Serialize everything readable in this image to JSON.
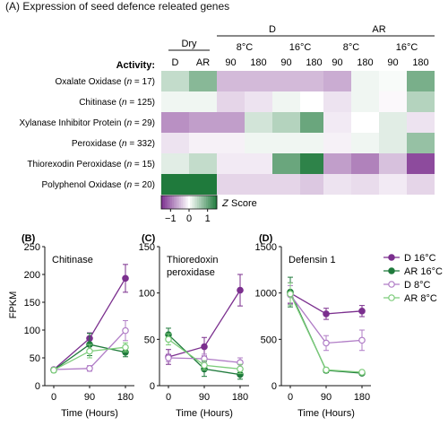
{
  "figure_title": "(A) Expression of seed defence releated genes",
  "chart_data": [
    {
      "type": "heatmap",
      "panel": "(A)",
      "row_header": "Activity:",
      "column_groups": [
        {
          "label": "Dry",
          "columns": [
            "D",
            "AR"
          ]
        },
        {
          "label": "D",
          "subgroups": [
            {
              "label": "8°C",
              "columns": [
                "90",
                "180"
              ]
            },
            {
              "label": "16°C",
              "columns": [
                "90",
                "180"
              ]
            }
          ]
        },
        {
          "label": "AR",
          "subgroups": [
            {
              "label": "8°C",
              "columns": [
                "90",
                "180"
              ]
            },
            {
              "label": "16°C",
              "columns": [
                "90",
                "180"
              ]
            }
          ]
        }
      ],
      "rows": [
        {
          "label": "Oxalate Oxidase",
          "n": "17",
          "values": [
            0.4,
            0.8,
            -0.5,
            -0.5,
            -0.5,
            -0.5,
            -0.6,
            0.1,
            0.05,
            0.9
          ]
        },
        {
          "label": "Chitinase",
          "n": "125",
          "values": [
            0.1,
            0.1,
            -0.3,
            -0.2,
            0.1,
            0.0,
            -0.2,
            0.1,
            -0.05,
            0.5
          ]
        },
        {
          "label": "Xylanase Inhibitor Protein",
          "n": "29",
          "values": [
            -0.8,
            -0.7,
            -0.7,
            0.3,
            0.5,
            1.0,
            -0.15,
            0.0,
            0.2,
            -0.2
          ]
        },
        {
          "label": "Peroxidase",
          "n": "332",
          "values": [
            -0.2,
            -0.1,
            -0.1,
            0.1,
            0.1,
            0.1,
            -0.1,
            0.1,
            0.2,
            0.7
          ]
        },
        {
          "label": "Thiorexodin Peroxidase",
          "n": "15",
          "values": [
            0.2,
            0.4,
            -0.15,
            -0.15,
            1.0,
            1.4,
            -0.7,
            -0.9,
            -0.45,
            -1.3
          ]
        },
        {
          "label": "Polyphenol Oxidase",
          "n": "20",
          "values": [
            1.5,
            1.5,
            -0.3,
            -0.3,
            -0.3,
            -0.4,
            -0.2,
            -0.25,
            -0.15,
            -0.3
          ]
        }
      ],
      "colorbar": {
        "label": "Z Score",
        "ticks": [
          "−1",
          "0",
          "1"
        ],
        "range": [
          -1.5,
          1.5
        ],
        "low_color": "#7b2f8e",
        "mid_color": "#ffffff",
        "high_color": "#1f7a3c"
      }
    },
    {
      "type": "line",
      "panel": "(B)",
      "title": "Chitinase",
      "xlabel": "Time (Hours)",
      "ylabel": "FPKM",
      "x": [
        0,
        90,
        180
      ],
      "xticks": [
        "0",
        "90",
        "180"
      ],
      "ylim": [
        0,
        250
      ],
      "yticks": [
        "0",
        "50",
        "100",
        "150",
        "200",
        "250"
      ],
      "series": [
        {
          "name": "D 16°C",
          "values": [
            29,
            85,
            193
          ],
          "err": [
            4,
            10,
            25
          ]
        },
        {
          "name": "AR 16°C",
          "values": [
            28,
            74,
            60
          ],
          "err": [
            4,
            20,
            8
          ]
        },
        {
          "name": "D 8°C",
          "values": [
            29,
            31,
            99
          ],
          "err": [
            4,
            5,
            18
          ]
        },
        {
          "name": "AR 8°C",
          "values": [
            28,
            62,
            69
          ],
          "err": [
            4,
            12,
            8
          ]
        }
      ]
    },
    {
      "type": "line",
      "panel": "(C)",
      "title": "Thioredoxin peroxidase",
      "title_lines": [
        "Thioredoxin",
        "peroxidase"
      ],
      "xlabel": "Time (Hours)",
      "x": [
        0,
        90,
        180
      ],
      "xticks": [
        "0",
        "90",
        "180"
      ],
      "ylim": [
        0,
        150
      ],
      "yticks": [
        "0",
        "50",
        "100",
        "150"
      ],
      "series": [
        {
          "name": "D 16°C",
          "values": [
            31,
            42,
            103
          ],
          "err": [
            8,
            10,
            17
          ]
        },
        {
          "name": "AR 16°C",
          "values": [
            55,
            18,
            12
          ],
          "err": [
            7,
            8,
            5
          ]
        },
        {
          "name": "D 8°C",
          "values": [
            30,
            29,
            25
          ],
          "err": [
            4,
            5,
            5
          ]
        },
        {
          "name": "AR 8°C",
          "values": [
            50,
            22,
            18
          ],
          "err": [
            6,
            5,
            5
          ]
        }
      ]
    },
    {
      "type": "line",
      "panel": "(D)",
      "title": "Defensin 1",
      "xlabel": "Time (Hours)",
      "x": [
        0,
        90,
        180
      ],
      "xticks": [
        "0",
        "90",
        "180"
      ],
      "ylim": [
        0,
        1500
      ],
      "yticks": [
        "0",
        "500",
        "1000",
        "1500"
      ],
      "series": [
        {
          "name": "D 16°C",
          "values": [
            1000,
            775,
            805
          ],
          "err": [
            110,
            60,
            60
          ]
        },
        {
          "name": "AR 16°C",
          "values": [
            1010,
            165,
            135
          ],
          "err": [
            160,
            25,
            15
          ]
        },
        {
          "name": "D 8°C",
          "values": [
            980,
            460,
            490
          ],
          "err": [
            100,
            80,
            110
          ]
        },
        {
          "name": "AR 8°C",
          "values": [
            990,
            170,
            145
          ],
          "err": [
            120,
            20,
            15
          ]
        }
      ]
    }
  ],
  "legend": [
    {
      "name": "D 16°C",
      "color": "#7b2f8e",
      "filled": true
    },
    {
      "name": "AR 16°C",
      "color": "#1f7a3c",
      "filled": true
    },
    {
      "name": "D 8°C",
      "color": "#b07cc6",
      "filled": false
    },
    {
      "name": "AR 8°C",
      "color": "#7ccc7a",
      "filled": false
    }
  ]
}
